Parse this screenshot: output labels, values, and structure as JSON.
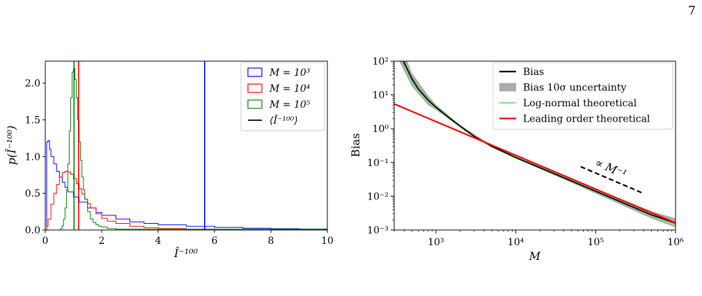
{
  "page": {
    "number": "7",
    "caption_fragment": ""
  },
  "chart_data": [
    {
      "type": "histogram",
      "xlabel": "Î⁻¹⁰⁰",
      "ylabel": "p(Î⁻¹⁰⁰)",
      "xlim": [
        0,
        10
      ],
      "ylim": [
        0,
        2.3
      ],
      "xticks": [
        0,
        2,
        4,
        6,
        8,
        10
      ],
      "xtick_labels": [
        "0",
        "2",
        "4",
        "6",
        "8",
        "10"
      ],
      "yticks": [
        0,
        0.5,
        1.0,
        1.5,
        2.0
      ],
      "ytick_labels": [
        "0.0",
        "0.5",
        "1.0",
        "1.5",
        "2.0"
      ],
      "legend_position": "top-right",
      "series": [
        {
          "name": "M = 10³",
          "color": "#0000ff",
          "x": [
            0.0,
            0.05,
            0.1,
            0.15,
            0.2,
            0.3,
            0.4,
            0.5,
            0.6,
            0.7,
            0.8,
            1.0,
            1.2,
            1.5,
            1.8,
            2.0,
            2.5,
            3.0,
            3.5,
            4.0,
            5.0,
            6.0,
            7.0,
            8.0,
            9.0,
            10.0
          ],
          "y": [
            0.0,
            1.2,
            1.22,
            1.1,
            1.0,
            0.9,
            0.8,
            0.72,
            0.65,
            0.58,
            0.52,
            0.45,
            0.38,
            0.3,
            0.24,
            0.2,
            0.15,
            0.11,
            0.09,
            0.07,
            0.05,
            0.035,
            0.025,
            0.018,
            0.013,
            0.01
          ],
          "mean": 5.65
        },
        {
          "name": "M = 10⁴",
          "color": "#ff0000",
          "x": [
            0.0,
            0.05,
            0.1,
            0.2,
            0.3,
            0.4,
            0.5,
            0.6,
            0.7,
            0.8,
            0.9,
            1.0,
            1.1,
            1.2,
            1.3,
            1.4,
            1.5,
            1.6,
            1.8,
            2.0,
            2.2,
            2.5,
            3.0,
            3.5,
            4.0,
            5.0,
            6.0
          ],
          "y": [
            0.0,
            0.05,
            0.15,
            0.35,
            0.5,
            0.62,
            0.72,
            0.78,
            0.8,
            0.79,
            0.76,
            0.7,
            0.63,
            0.56,
            0.49,
            0.42,
            0.36,
            0.3,
            0.22,
            0.16,
            0.12,
            0.09,
            0.05,
            0.03,
            0.02,
            0.01,
            0.005
          ],
          "mean": 1.18
        },
        {
          "name": "M = 10⁵",
          "color": "#008000",
          "x": [
            0.5,
            0.55,
            0.6,
            0.65,
            0.7,
            0.75,
            0.8,
            0.85,
            0.9,
            0.95,
            1.0,
            1.05,
            1.1,
            1.15,
            1.2,
            1.25,
            1.3,
            1.35,
            1.4,
            1.5,
            1.6,
            1.7,
            1.8,
            1.9,
            2.0,
            2.2,
            2.5
          ],
          "y": [
            0.0,
            0.02,
            0.06,
            0.15,
            0.3,
            0.55,
            0.9,
            1.35,
            1.8,
            2.15,
            2.2,
            2.05,
            1.8,
            1.5,
            1.2,
            0.95,
            0.72,
            0.55,
            0.42,
            0.25,
            0.15,
            0.1,
            0.07,
            0.05,
            0.04,
            0.02,
            0.01
          ],
          "mean": 1.02
        },
        {
          "name": "⟨Î⁻¹⁰⁰⟩",
          "color": "#000000",
          "style": "legend-line"
        }
      ]
    },
    {
      "type": "line",
      "xlabel": "M",
      "ylabel": "Bias",
      "xscale": "log",
      "yscale": "log",
      "xlim": [
        300,
        1000000
      ],
      "ylim": [
        0.001,
        100
      ],
      "xticks": [
        1000,
        10000,
        100000,
        1000000
      ],
      "xtick_labels": [
        "10³",
        "10⁴",
        "10⁵",
        "10⁶"
      ],
      "yticks": [
        0.001,
        0.01,
        0.1,
        1,
        10,
        100
      ],
      "ytick_labels": [
        "10⁻³",
        "10⁻²",
        "10⁻¹",
        "10⁰",
        "10¹",
        "10²"
      ],
      "legend_position": "top-right",
      "annotation": {
        "text": "∝ M⁻¹",
        "x0": 65000,
        "y0": 0.075,
        "x1": 400000,
        "y1": 0.012
      },
      "series": [
        {
          "name": "Bias",
          "color": "#000000",
          "x": [
            300,
            400,
            500,
            600,
            800,
            1000,
            1500,
            2000,
            3000,
            5000,
            10000,
            20000,
            50000,
            100000,
            200000,
            500000,
            1000000
          ],
          "y": [
            500,
            90,
            30,
            15,
            7,
            4.3,
            2.0,
            1.2,
            0.6,
            0.3,
            0.14,
            0.07,
            0.028,
            0.014,
            0.007,
            0.0028,
            0.0016
          ]
        },
        {
          "name": "Bias 10σ uncertainty",
          "color": "#aaaaaa",
          "x": [
            300,
            500,
            800,
            1000,
            2000,
            5000,
            10000,
            50000,
            100000,
            200000,
            500000,
            1000000
          ],
          "lower": [
            200,
            18,
            5,
            3.6,
            1.1,
            0.28,
            0.13,
            0.025,
            0.012,
            0.0058,
            0.0022,
            0.0012
          ],
          "upper": [
            1000,
            45,
            9.5,
            5.2,
            1.3,
            0.32,
            0.15,
            0.031,
            0.016,
            0.0085,
            0.0036,
            0.0022
          ]
        },
        {
          "name": "Log-normal theoretical",
          "color": "#7fe87f",
          "x": [
            300,
            400,
            500,
            600,
            800,
            1000,
            1500,
            2000,
            3000,
            5000,
            10000,
            20000,
            50000,
            100000,
            200000,
            500000,
            1000000
          ],
          "y": [
            400,
            80,
            25,
            13,
            6.5,
            4.0,
            1.9,
            1.15,
            0.58,
            0.29,
            0.135,
            0.068,
            0.027,
            0.0135,
            0.0068,
            0.0027,
            0.00135
          ]
        },
        {
          "name": "Leading order theoretical",
          "color": "#ff0000",
          "x": [
            300,
            1000000
          ],
          "y": [
            5.4,
            0.00162
          ]
        }
      ]
    }
  ]
}
